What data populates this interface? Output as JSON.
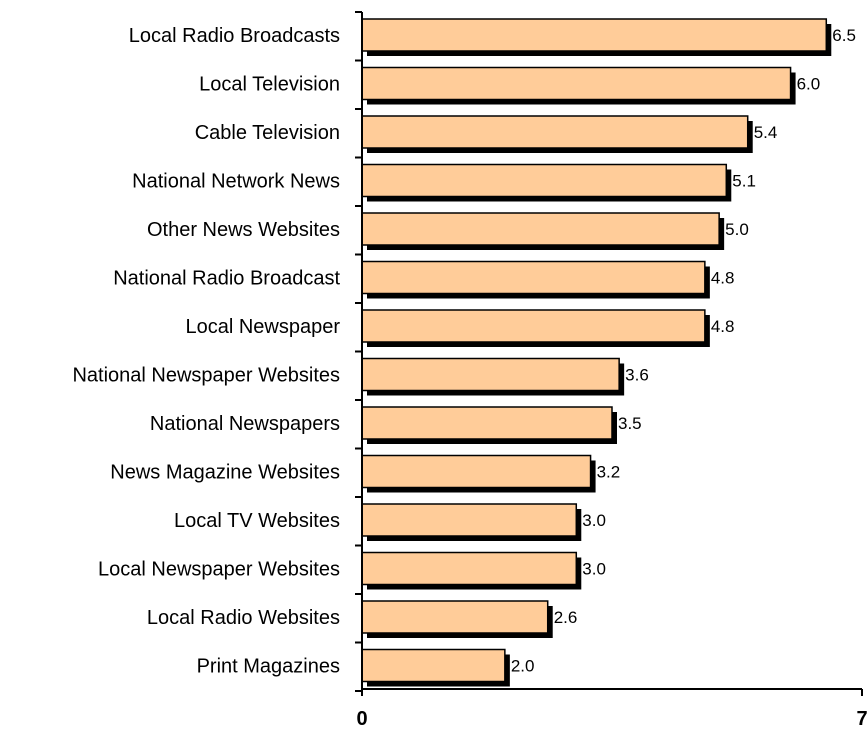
{
  "chart_data": {
    "type": "bar",
    "orientation": "horizontal",
    "categories": [
      "Local Radio Broadcasts",
      "Local Television",
      "Cable Television",
      "National Network News",
      "Other News Websites",
      "National Radio Broadcast",
      "Local Newspaper",
      "National Newspaper Websites",
      "National Newspapers",
      "News Magazine Websites",
      "Local TV Websites",
      "Local Newspaper Websites",
      "Local Radio Websites",
      "Print Magazines"
    ],
    "values": [
      6.5,
      6.0,
      5.4,
      5.1,
      5.0,
      4.8,
      4.8,
      3.6,
      3.5,
      3.2,
      3.0,
      3.0,
      2.6,
      2.0
    ],
    "value_labels": [
      "6.5",
      "6.0",
      "5.4",
      "5.1",
      "5.0",
      "4.8",
      "4.8",
      "3.6",
      "3.5",
      "3.2",
      "3.0",
      "3.0",
      "2.6",
      "2.0"
    ],
    "xlim": [
      0,
      7
    ],
    "x_ticks": [
      "0",
      "7"
    ],
    "grid": false,
    "legend": "none",
    "colors": {
      "bar_fill": "#FFCC99",
      "bar_border": "#000000",
      "bar_shadow": "#000000",
      "axis": "#000000"
    }
  }
}
